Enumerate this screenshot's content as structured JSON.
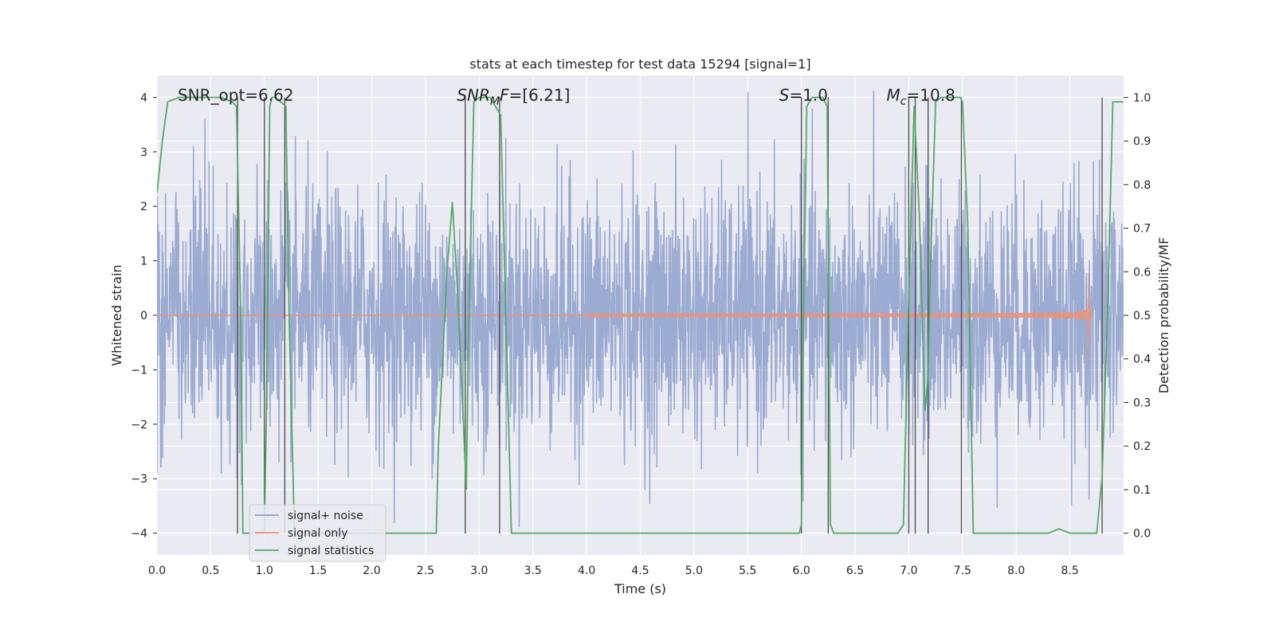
{
  "chart_data": {
    "type": "line",
    "title": "stats at each timestep for test data 15294 [signal=1]",
    "xlabel": "Time (s)",
    "ylabel": "Whitened strain",
    "y2label": "Detection probability/MF",
    "xlim": [
      0.0,
      9.0
    ],
    "ylim": [
      -4.4,
      4.4
    ],
    "y2lim": [
      -0.05,
      1.05
    ],
    "x_ticks": [
      0.0,
      0.5,
      1.0,
      1.5,
      2.0,
      2.5,
      3.0,
      3.5,
      4.0,
      4.5,
      5.0,
      5.5,
      6.0,
      6.5,
      7.0,
      7.5,
      8.0,
      8.5
    ],
    "x_tick_labels": [
      "0.0",
      "0.5",
      "1.0",
      "1.5",
      "2.0",
      "2.5",
      "3.0",
      "3.5",
      "4.0",
      "4.5",
      "5.0",
      "5.5",
      "6.0",
      "6.5",
      "7.0",
      "7.5",
      "8.0",
      "8.5"
    ],
    "y_ticks": [
      -4,
      -3,
      -2,
      -1,
      0,
      1,
      2,
      3,
      4
    ],
    "y_tick_labels": [
      "−4",
      "−3",
      "−2",
      "−1",
      "0",
      "1",
      "2",
      "3",
      "4"
    ],
    "y2_ticks": [
      0.0,
      0.1,
      0.2,
      0.3,
      0.4,
      0.5,
      0.6,
      0.7,
      0.8,
      0.9,
      1.0
    ],
    "y2_tick_labels": [
      "0.0",
      "0.1",
      "0.2",
      "0.3",
      "0.4",
      "0.5",
      "0.6",
      "0.7",
      "0.8",
      "0.9",
      "1.0"
    ],
    "grid": true,
    "legend_position": "lower-left",
    "annotations": [
      {
        "text": "SNR_opt=6.62",
        "x": 0.2,
        "y": 4.0
      },
      {
        "text": "SNRMF=[6.21]",
        "x": 2.6,
        "y": 4.0
      },
      {
        "text": "S=1.0",
        "x": 5.6,
        "y": 4.0
      },
      {
        "text": "Mc=10.8",
        "x": 6.6,
        "y": 4.0
      }
    ],
    "series": [
      {
        "name": "signal+ noise",
        "color": "#8da0cb",
        "description_kind": "noise",
        "t_start": 0.0,
        "t_end": 9.0,
        "amplitude_std": 1.0
      },
      {
        "name": "signal only",
        "color": "#e8947a",
        "description_kind": "chirp",
        "t_merger": 8.67,
        "peak_amplitude": 0.95
      },
      {
        "name": "signal statistics",
        "color": "#55a868",
        "axis": "right",
        "x": [
          0.0,
          0.05,
          0.1,
          0.2,
          0.3,
          0.4,
          0.5,
          0.6,
          0.7,
          0.74,
          0.78,
          0.8,
          0.85,
          0.9,
          0.95,
          0.99,
          1.0,
          1.02,
          1.05,
          1.07,
          1.1,
          1.15,
          1.2,
          1.23,
          1.28,
          1.3,
          1.4,
          1.6,
          1.8,
          2.0,
          2.2,
          2.4,
          2.6,
          2.62,
          2.7,
          2.75,
          2.8,
          2.88,
          2.9,
          2.95,
          3.0,
          3.1,
          3.15,
          3.2,
          3.3,
          3.5,
          4.0,
          4.5,
          5.0,
          5.5,
          5.98,
          6.0,
          6.02,
          6.05,
          6.1,
          6.2,
          6.24,
          6.27,
          6.3,
          6.5,
          6.9,
          6.95,
          7.0,
          7.05,
          7.1,
          7.15,
          7.18,
          7.2,
          7.25,
          7.3,
          7.4,
          7.48,
          7.5,
          7.55,
          7.6,
          7.7,
          8.0,
          8.3,
          8.4,
          8.5,
          8.6,
          8.75,
          8.8,
          8.85,
          8.9,
          8.95,
          9.0
        ],
        "y": [
          0.78,
          0.9,
          0.99,
          1.0,
          1.0,
          1.0,
          1.0,
          1.0,
          0.99,
          0.98,
          0.5,
          0.0,
          0.0,
          0.0,
          0.0,
          0.0,
          0.0,
          0.3,
          0.98,
          1.0,
          1.0,
          0.99,
          0.98,
          0.5,
          0.0,
          0.0,
          0.0,
          0.0,
          0.0,
          0.0,
          0.0,
          0.0,
          0.0,
          0.2,
          0.6,
          0.76,
          0.55,
          0.1,
          0.45,
          0.99,
          1.0,
          1.0,
          0.98,
          0.96,
          0.0,
          0.0,
          0.0,
          0.0,
          0.0,
          0.0,
          0.0,
          0.02,
          0.5,
          0.98,
          1.0,
          1.0,
          0.98,
          0.02,
          0.0,
          0.0,
          0.0,
          0.02,
          0.55,
          0.98,
          0.72,
          0.28,
          0.36,
          0.6,
          0.99,
          1.0,
          1.0,
          1.0,
          0.99,
          0.7,
          0.0,
          0.0,
          0.0,
          0.0,
          0.01,
          0.0,
          0.0,
          0.0,
          0.13,
          0.5,
          0.99,
          0.99,
          0.99
        ]
      }
    ],
    "vertical_lines": [
      0.75,
      1.0,
      1.19,
      2.87,
      3.19,
      6.0,
      6.25,
      7.0,
      7.06,
      7.18,
      7.49,
      8.8
    ]
  }
}
